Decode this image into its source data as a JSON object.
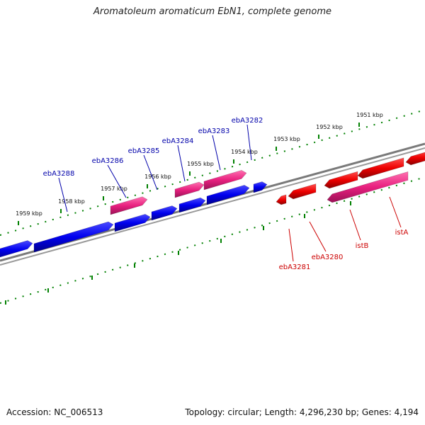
{
  "title": "Aromatoleum aromaticum EbN1, complete genome",
  "footer": {
    "accession_label": "Accession:",
    "accession": "NC_006513",
    "summary": "Topology: circular; Length: 4,296,230 bp; Genes: 4,194"
  },
  "colors": {
    "forward_gene": "#0000ee",
    "forward_pseudo": "#e8207f",
    "reverse_gene": "#ee0000",
    "reverse_pseudo": "#ff3399",
    "backbone": "#808080",
    "ticks": "#008000",
    "forward_label": "#0000aa",
    "reverse_label": "#cc0000"
  },
  "ticks": [
    {
      "label": "1951 kbp",
      "kbp": 1951
    },
    {
      "label": "1952 kbp",
      "kbp": 1952
    },
    {
      "label": "1953 kbp",
      "kbp": 1953
    },
    {
      "label": "1954 kbp",
      "kbp": 1954
    },
    {
      "label": "1955 kbp",
      "kbp": 1955
    },
    {
      "label": "1956 kbp",
      "kbp": 1956
    },
    {
      "label": "1957 kbp",
      "kbp": 1957
    },
    {
      "label": "1958 kbp",
      "kbp": 1958
    },
    {
      "label": "1959 kbp",
      "kbp": 1959
    }
  ],
  "forward_labels": [
    {
      "name": "ebA3282"
    },
    {
      "name": "ebA3283"
    },
    {
      "name": "ebA3284"
    },
    {
      "name": "ebA3285"
    },
    {
      "name": "ebA3286"
    },
    {
      "name": "ebA3288"
    }
  ],
  "reverse_labels": [
    {
      "name": "istA"
    },
    {
      "name": "istB"
    },
    {
      "name": "ebA3280"
    },
    {
      "name": "ebA3281"
    }
  ]
}
